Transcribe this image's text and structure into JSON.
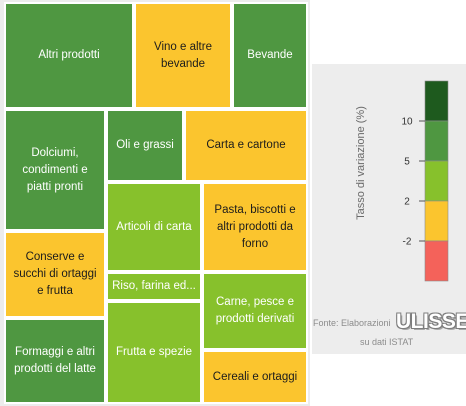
{
  "chart_data": {
    "type": "treemap",
    "tiles": [
      {
        "label": "Altri prodotti",
        "class": "5 – 10"
      },
      {
        "label": "Vino e altre\nbevande",
        "class": "-2 – 2"
      },
      {
        "label": "Bevande",
        "class": "5 – 10"
      },
      {
        "label": "Dolciumi,\ncondimenti e\npiatti pronti",
        "class": "5 – 10"
      },
      {
        "label": "Oli e grassi",
        "class": "5 – 10"
      },
      {
        "label": "Carta e cartone",
        "class": "-2 – 2"
      },
      {
        "label": "Articoli di carta",
        "class": "2 – 5"
      },
      {
        "label": "Pasta, biscotti e\naltri prodotti da\nforno",
        "class": "-2 – 2"
      },
      {
        "label": "Conserve e\nsucchi di ortaggi\ne frutta",
        "class": "-2 – 2"
      },
      {
        "label": "Riso, farina ed...",
        "class": "2 – 5"
      },
      {
        "label": "Carne, pesce e\nprodotti derivati",
        "class": "2 – 5"
      },
      {
        "label": "Frutta e spezie",
        "class": "2 – 5"
      },
      {
        "label": "Formaggi e altri\nprodotti del latte",
        "class": "5 – 10"
      },
      {
        "label": "Cereali e ortaggi",
        "class": "-2 – 2"
      }
    ],
    "legend": {
      "title": "Tasso di variazione (%)",
      "ticks": [
        10,
        5,
        2,
        -2
      ],
      "classes": [
        {
          "range": "> 10",
          "color": "#1e5a1e"
        },
        {
          "range": "5 – 10",
          "color": "#4f9741"
        },
        {
          "range": "2 – 5",
          "color": "#87c12c"
        },
        {
          "range": "-2 – 2",
          "color": "#fbc52e"
        },
        {
          "range": "< -2",
          "color": "#f4625a"
        }
      ]
    }
  },
  "source": {
    "line1": "Fonte: Elaborazioni",
    "logo": "ULISSE",
    "line2": "su dati ISTAT"
  }
}
